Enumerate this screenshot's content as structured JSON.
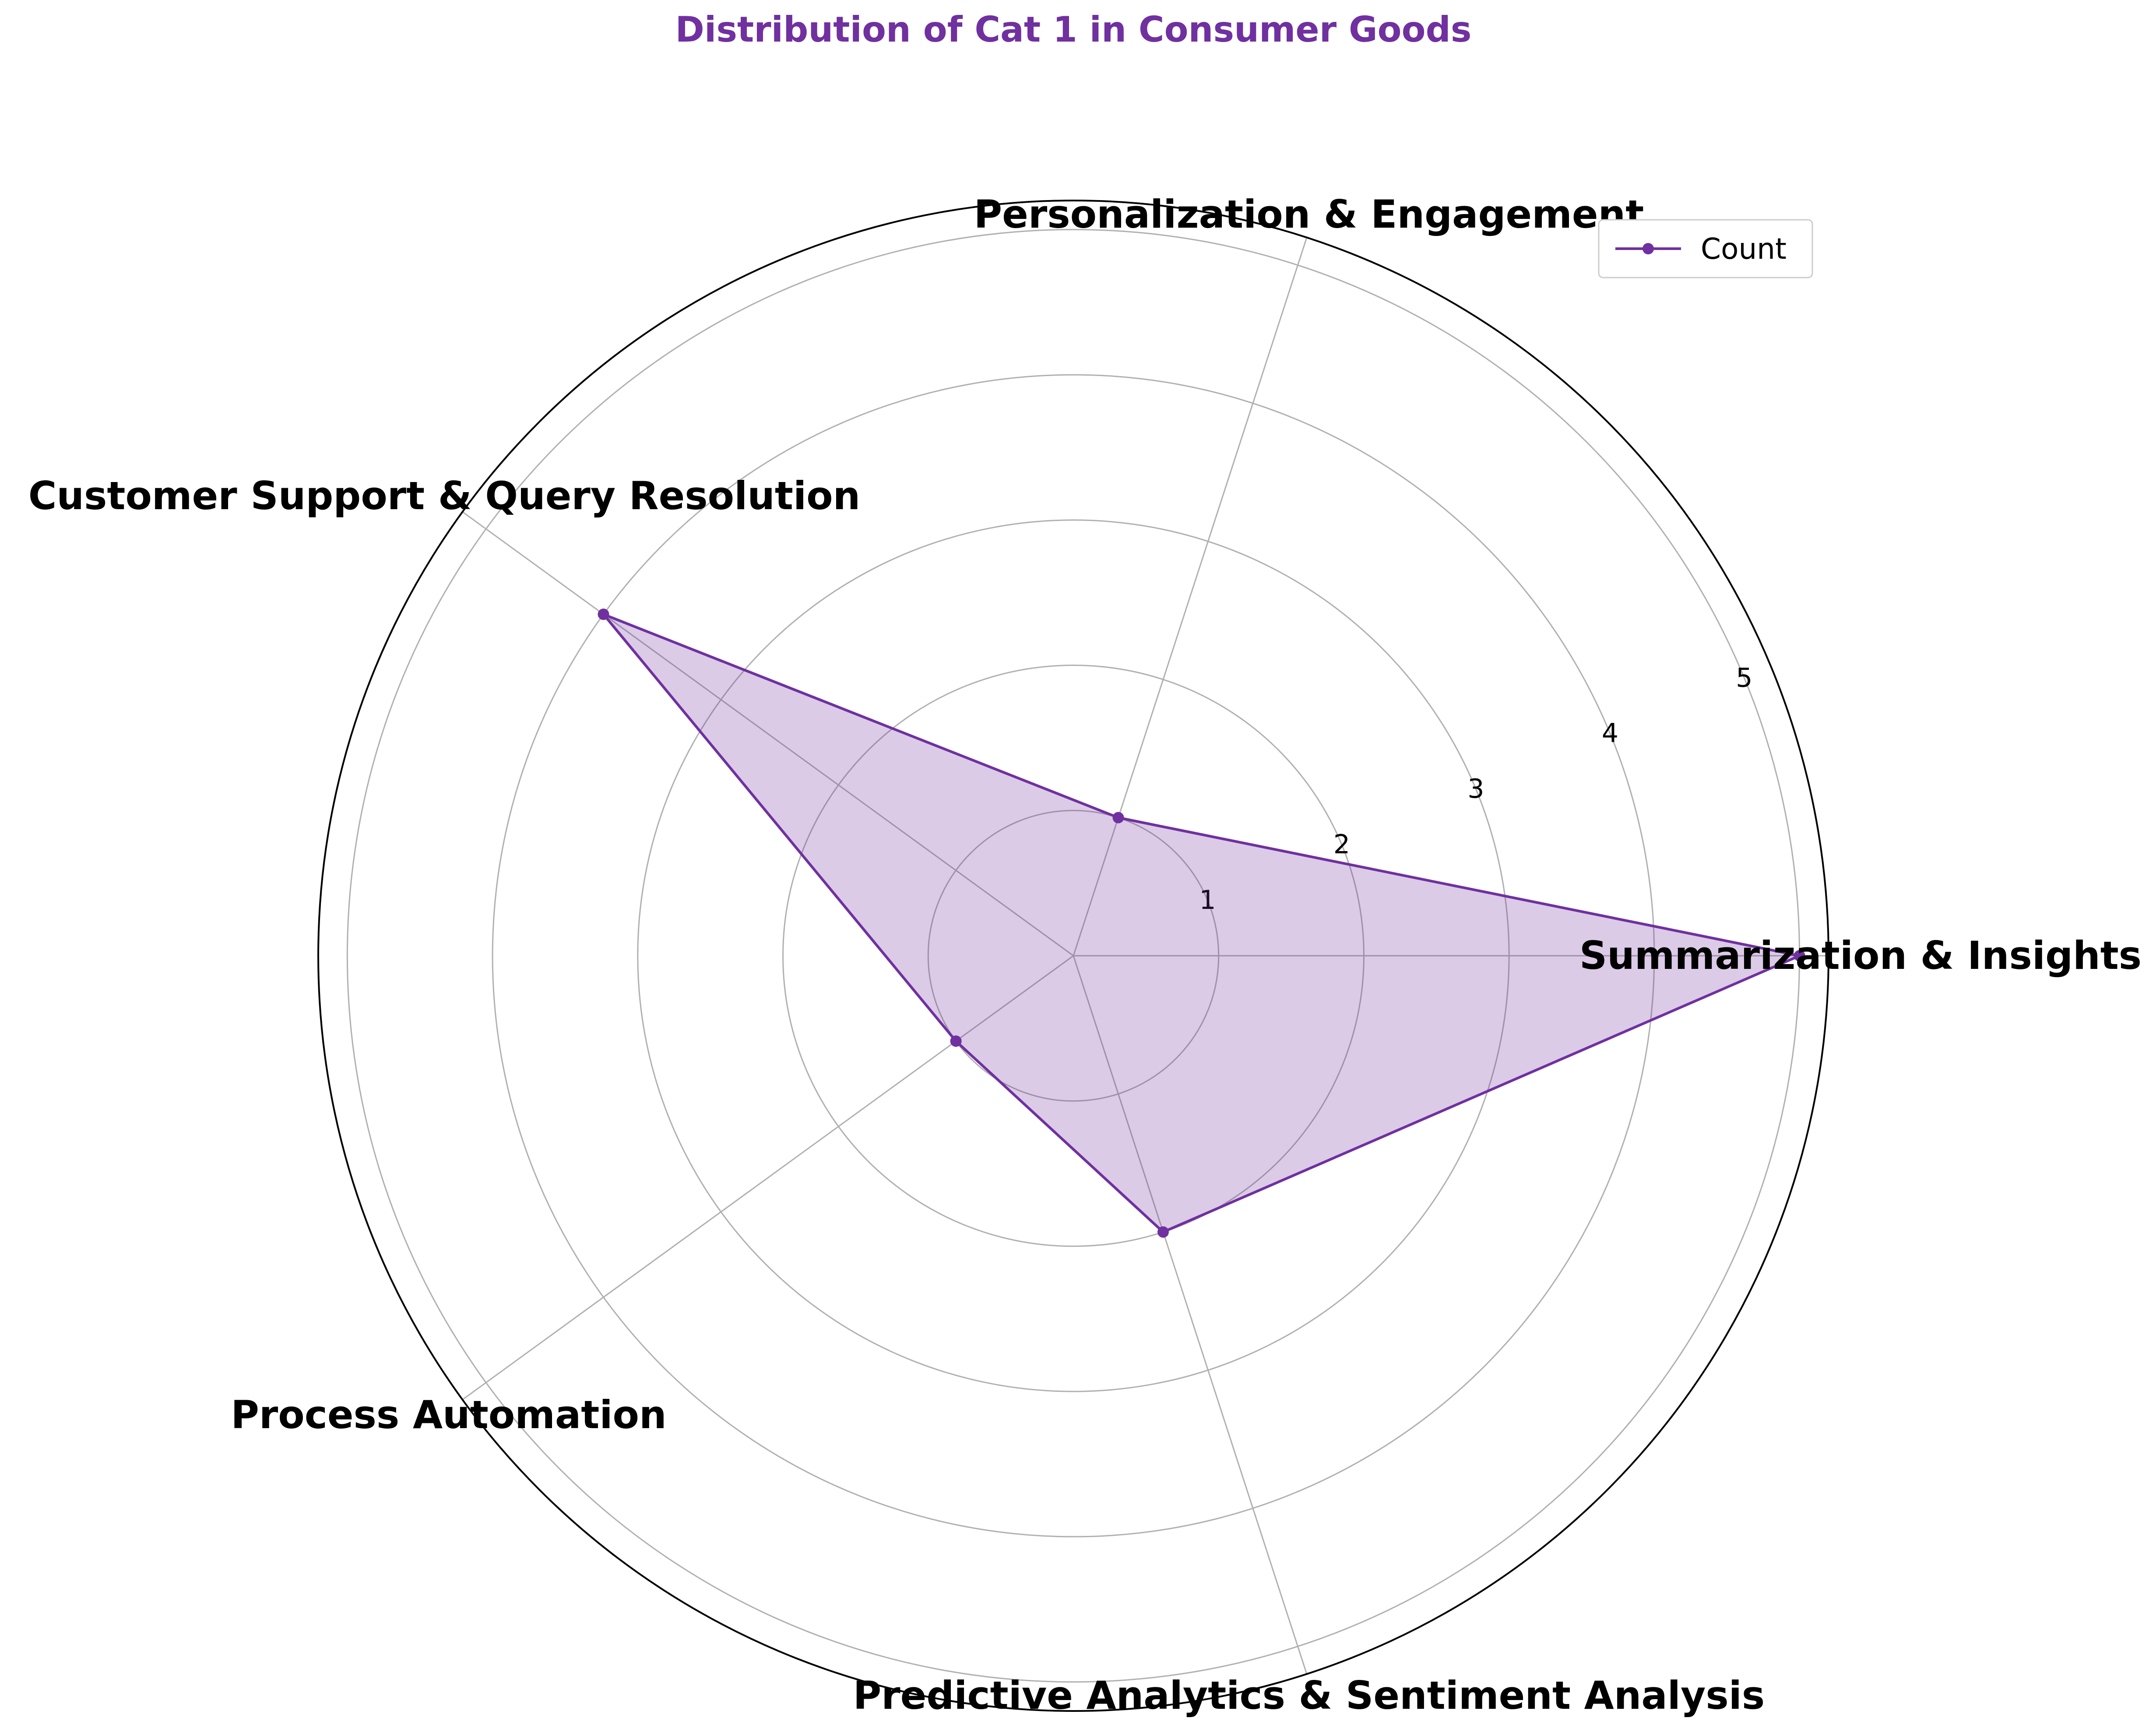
{
  "chart_data": {
    "type": "radar",
    "title": "Distribution of Cat 1 in Consumer Goods",
    "categories": [
      "Summarization & Insights",
      "Personalization & Engagement",
      "Customer Support & Query Resolution",
      "Process Automation",
      "Predictive Analytics & Sentiment Analysis"
    ],
    "series": [
      {
        "name": "Count",
        "values": [
          5,
          1,
          4,
          1,
          2
        ]
      }
    ],
    "rticks": [
      1,
      2,
      3,
      4,
      5
    ],
    "rlim": [
      0,
      5.2
    ],
    "grid": true,
    "legend": "top-right",
    "colors": {
      "series": "#7030a0",
      "fill": "#7030a0",
      "grid": "#b0b0b0",
      "title": "#7030a0"
    }
  }
}
